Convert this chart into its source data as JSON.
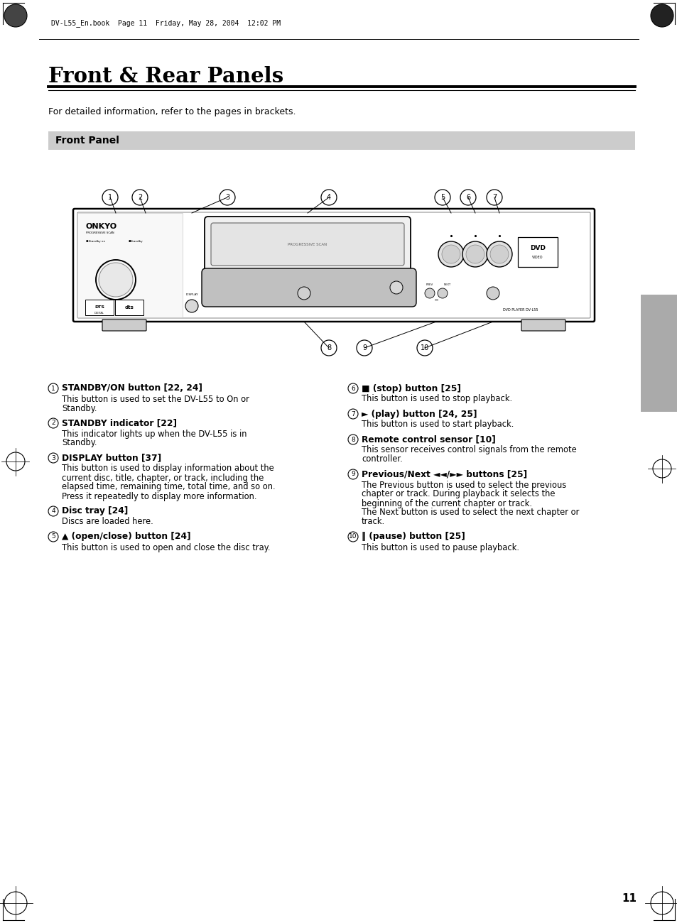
{
  "title": "Front & Rear Panels",
  "header_text": "DV-L55_En.book  Page 11  Friday, May 28, 2004  12:02 PM",
  "subtitle": "For detailed information, refer to the pages in brackets.",
  "section_label": "Front Panel",
  "page_number": "11",
  "bg_color": "#ffffff",
  "section_bg": "#cccccc",
  "right_tab_color": "#aaaaaa",
  "items_left": [
    {
      "num": "1",
      "title": "STANDBY/ON button [22, 24]",
      "body": "This button is used to set the DV-L55 to On or\nStandby."
    },
    {
      "num": "2",
      "title": "STANDBY indicator [22]",
      "body": "This indicator lights up when the DV-L55 is in\nStandby."
    },
    {
      "num": "3",
      "title": "DISPLAY button [37]",
      "body": "This button is used to display information about the\ncurrent disc, title, chapter, or track, including the\nelapsed time, remaining time, total time, and so on.\nPress it repeatedly to display more information."
    },
    {
      "num": "4",
      "title": "Disc tray [24]",
      "body": "Discs are loaded here."
    },
    {
      "num": "5",
      "title": "▲ (open/close) button [24]",
      "body": "This button is used to open and close the disc tray."
    }
  ],
  "items_right": [
    {
      "num": "6",
      "title": "■ (stop) button [25]",
      "body": "This button is used to stop playback."
    },
    {
      "num": "7",
      "title": "► (play) button [24, 25]",
      "body": "This button is used to start playback."
    },
    {
      "num": "8",
      "title": "Remote control sensor [10]",
      "body": "This sensor receives control signals from the remote\ncontroller."
    },
    {
      "num": "9",
      "title": "Previous/Next ◄◄/►► buttons [25]",
      "body": "The Previous button is used to select the previous\nchapter or track. During playback it selects the\nbeginning of the current chapter or track.\nThe Next button is used to select the next chapter or\ntrack."
    },
    {
      "num": "10",
      "title": "‖ (pause) button [25]",
      "body": "This button is used to pause playback."
    }
  ]
}
